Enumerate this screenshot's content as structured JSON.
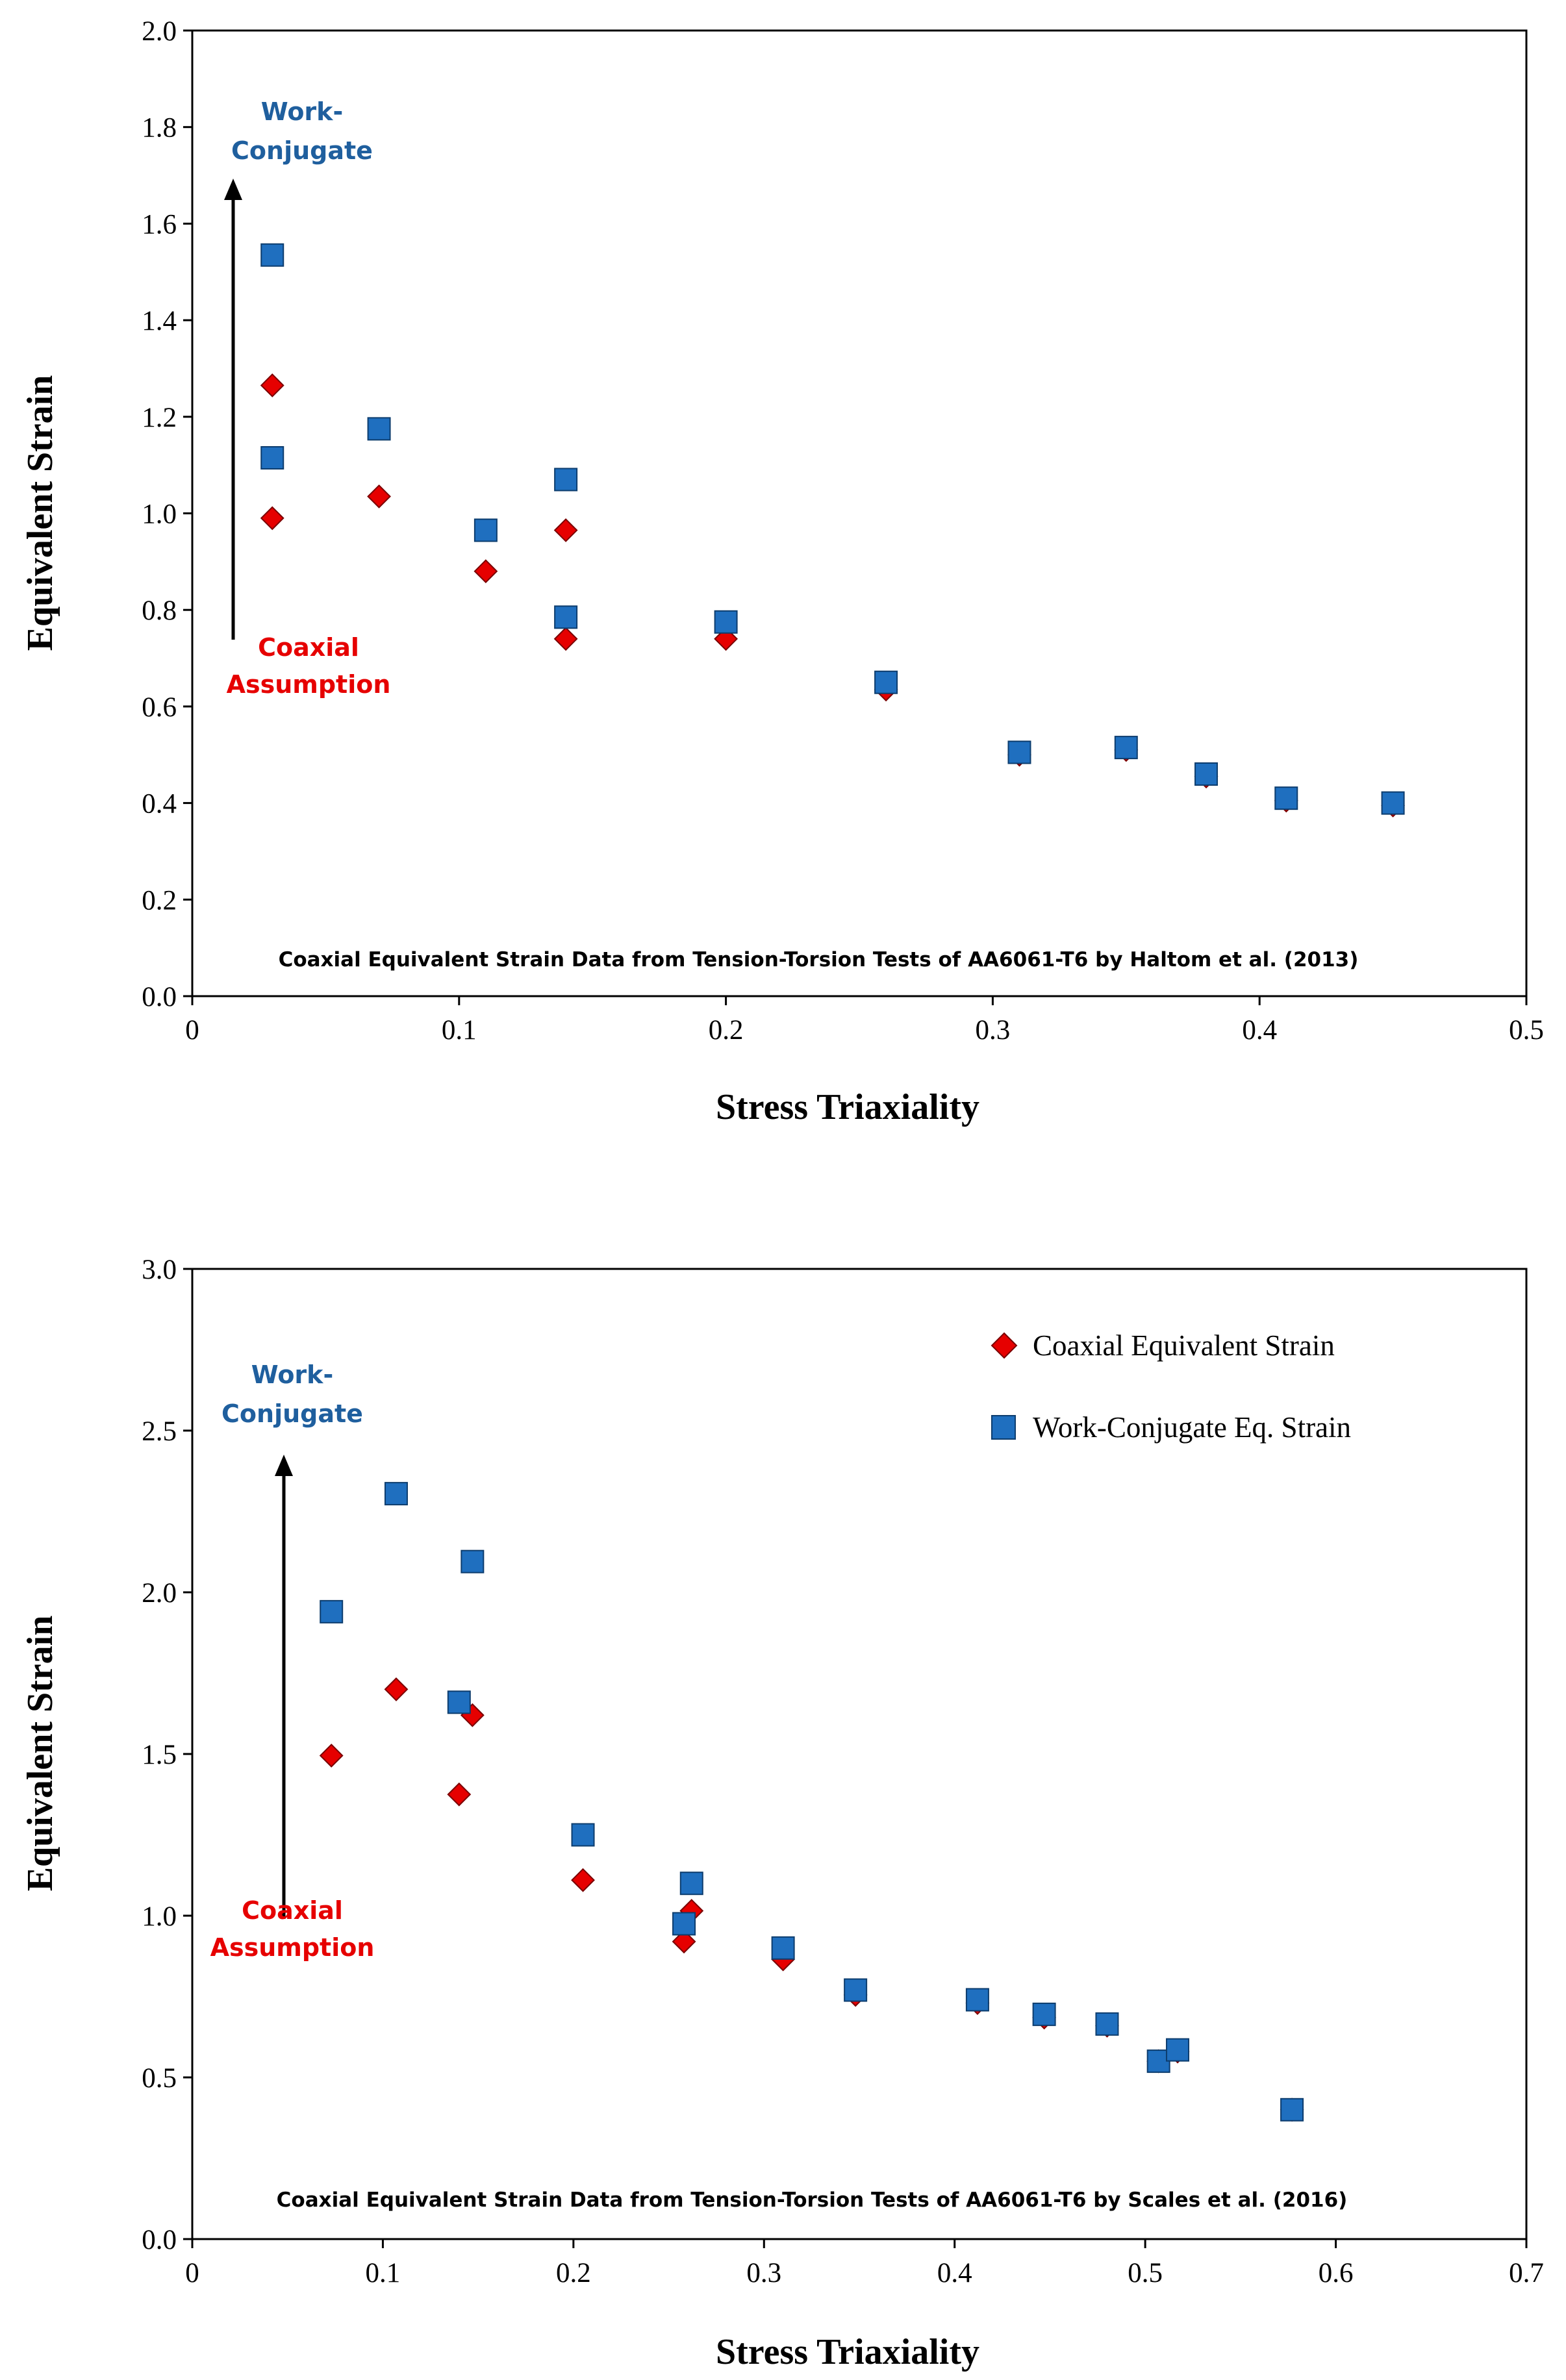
{
  "colors": {
    "coaxial": "#e60000",
    "work_conjugate": "#1f6fbf",
    "work_conjugate_text": "#1f5f9e",
    "coaxial_text": "#e60000"
  },
  "chart_data": [
    {
      "type": "scatter",
      "title": "",
      "xlabel": "Stress Triaxiality",
      "ylabel": "Equivalent Strain",
      "xlim": [
        0,
        0.5
      ],
      "ylim": [
        0,
        2.0
      ],
      "x_ticks": [
        "0",
        "0.1",
        "0.2",
        "0.3",
        "0.4",
        "0.5"
      ],
      "y_ticks": [
        "0.0",
        "0.2",
        "0.4",
        "0.6",
        "0.8",
        "1.0",
        "1.2",
        "1.4",
        "1.6",
        "1.8",
        "2.0"
      ],
      "annotation_top": [
        "Work-",
        "Conjugate"
      ],
      "annotation_bottom": [
        "Coaxial",
        "Assumption"
      ],
      "note": "Coaxial Equivalent Strain Data from Tension-Torsion Tests of AA6061-T6 by Haltom et al. (2013)",
      "series": [
        {
          "name": "Coaxial Equivalent Strain",
          "marker": "diamond",
          "points": [
            [
              0.03,
              1.265
            ],
            [
              0.03,
              0.99
            ],
            [
              0.07,
              1.035
            ],
            [
              0.11,
              0.88
            ],
            [
              0.14,
              0.965
            ],
            [
              0.14,
              0.74
            ],
            [
              0.2,
              0.74
            ],
            [
              0.26,
              0.635
            ],
            [
              0.31,
              0.5
            ],
            [
              0.35,
              0.51
            ],
            [
              0.38,
              0.455
            ],
            [
              0.41,
              0.405
            ],
            [
              0.45,
              0.395
            ]
          ]
        },
        {
          "name": "Work-Conjugate Eq. Strain",
          "marker": "square",
          "points": [
            [
              0.03,
              1.535
            ],
            [
              0.03,
              1.115
            ],
            [
              0.07,
              1.175
            ],
            [
              0.11,
              0.965
            ],
            [
              0.14,
              1.07
            ],
            [
              0.14,
              0.785
            ],
            [
              0.2,
              0.775
            ],
            [
              0.26,
              0.65
            ],
            [
              0.31,
              0.505
            ],
            [
              0.35,
              0.515
            ],
            [
              0.38,
              0.46
            ],
            [
              0.41,
              0.41
            ],
            [
              0.45,
              0.4
            ]
          ]
        }
      ]
    },
    {
      "type": "scatter",
      "title": "",
      "xlabel": "Stress Triaxiality",
      "ylabel": "Equivalent Strain",
      "xlim": [
        0,
        0.7
      ],
      "ylim": [
        0,
        3.0
      ],
      "x_ticks": [
        "0",
        "0.1",
        "0.2",
        "0.3",
        "0.4",
        "0.5",
        "0.6",
        "0.7"
      ],
      "y_ticks": [
        "0.0",
        "0.5",
        "1.0",
        "1.5",
        "2.0",
        "2.5",
        "3.0"
      ],
      "annotation_top": [
        "Work-",
        "Conjugate"
      ],
      "annotation_bottom": [
        "Coaxial",
        "Assumption"
      ],
      "note": "Coaxial Equivalent Strain Data from Tension-Torsion Tests of AA6061-T6 by Scales et al. (2016)",
      "legend": [
        "Coaxial Equivalent Strain",
        "Work-Conjugate Eq. Strain"
      ],
      "series": [
        {
          "name": "Coaxial Equivalent Strain",
          "marker": "diamond",
          "points": [
            [
              0.073,
              1.495
            ],
            [
              0.107,
              1.7
            ],
            [
              0.14,
              1.375
            ],
            [
              0.147,
              1.62
            ],
            [
              0.205,
              1.11
            ],
            [
              0.258,
              0.92
            ],
            [
              0.262,
              1.015
            ],
            [
              0.31,
              0.865
            ],
            [
              0.348,
              0.755
            ],
            [
              0.412,
              0.73
            ],
            [
              0.447,
              0.685
            ],
            [
              0.48,
              0.66
            ],
            [
              0.507,
              0.55
            ],
            [
              0.517,
              0.58
            ],
            [
              0.577,
              0.4
            ]
          ]
        },
        {
          "name": "Work-Conjugate Eq. Strain",
          "marker": "square",
          "points": [
            [
              0.073,
              1.94
            ],
            [
              0.107,
              2.305
            ],
            [
              0.14,
              1.66
            ],
            [
              0.147,
              2.095
            ],
            [
              0.205,
              1.25
            ],
            [
              0.258,
              0.975
            ],
            [
              0.262,
              1.1
            ],
            [
              0.31,
              0.9
            ],
            [
              0.348,
              0.77
            ],
            [
              0.412,
              0.74
            ],
            [
              0.447,
              0.695
            ],
            [
              0.48,
              0.665
            ],
            [
              0.507,
              0.55
            ],
            [
              0.517,
              0.585
            ],
            [
              0.577,
              0.4
            ]
          ]
        }
      ]
    }
  ]
}
